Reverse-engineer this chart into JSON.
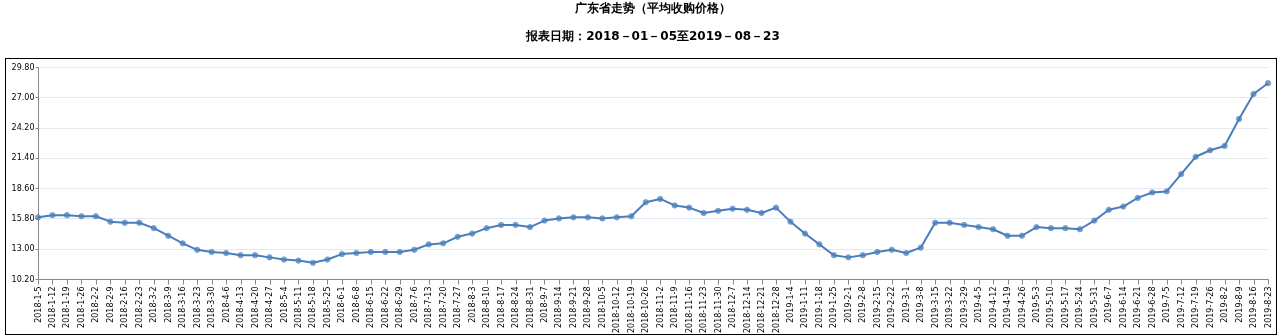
{
  "chart_data": {
    "type": "line",
    "title": "广东省走势（平均收购价格）",
    "subtitle": "报表日期：2018－01－05至2019－08－23",
    "categories": [
      "2018-1-5",
      "2018-1-12",
      "2018-1-19",
      "2018-1-26",
      "2018-2-2",
      "2018-2-9",
      "2018-2-16",
      "2018-2-23",
      "2018-3-2",
      "2018-3-9",
      "2018-3-16",
      "2018-3-23",
      "2018-3-30",
      "2018-4-6",
      "2018-4-13",
      "2018-4-20",
      "2018-4-27",
      "2018-5-4",
      "2018-5-11",
      "2018-5-18",
      "2018-5-25",
      "2018-6-1",
      "2018-6-8",
      "2018-6-15",
      "2018-6-22",
      "2018-6-29",
      "2018-7-6",
      "2018-7-13",
      "2018-7-20",
      "2018-7-27",
      "2018-8-3",
      "2018-8-10",
      "2018-8-17",
      "2018-8-24",
      "2018-8-31",
      "2018-9-7",
      "2018-9-14",
      "2018-9-21",
      "2018-9-28",
      "2018-10-5",
      "2018-10-12",
      "2018-10-19",
      "2018-10-26",
      "2018-11-2",
      "2018-11-9",
      "2018-11-16",
      "2018-11-23",
      "2018-11-30",
      "2018-12-7",
      "2018-12-14",
      "2018-12-21",
      "2018-12-28",
      "2019-1-4",
      "2019-1-11",
      "2019-1-18",
      "2019-1-25",
      "2019-2-1",
      "2019-2-8",
      "2019-2-15",
      "2019-2-22",
      "2019-3-1",
      "2019-3-8",
      "2019-3-15",
      "2019-3-22",
      "2019-3-29",
      "2019-4-5",
      "2019-4-12",
      "2019-4-19",
      "2019-4-26",
      "2019-5-3",
      "2019-5-10",
      "2019-5-17",
      "2019-5-24",
      "2019-5-31",
      "2019-6-7",
      "2019-6-14",
      "2019-6-21",
      "2019-6-28",
      "2019-7-5",
      "2019-7-12",
      "2019-7-19",
      "2019-7-26",
      "2019-8-2",
      "2019-8-9",
      "2019-8-16",
      "2019-8-23"
    ],
    "series": [
      {
        "color": "#4a7ebb",
        "values": [
          15.9,
          16.1,
          16.1,
          16.0,
          16.0,
          15.5,
          15.4,
          15.4,
          14.9,
          14.2,
          13.5,
          12.9,
          12.7,
          12.6,
          12.4,
          12.4,
          12.2,
          12.0,
          11.9,
          11.7,
          12.0,
          12.5,
          12.6,
          12.7,
          12.7,
          12.7,
          12.9,
          13.4,
          13.5,
          14.1,
          14.4,
          14.9,
          15.2,
          15.2,
          15.0,
          15.6,
          15.8,
          15.9,
          15.9,
          15.8,
          15.9,
          16.0,
          17.3,
          17.6,
          17.0,
          16.8,
          16.3,
          16.5,
          16.7,
          16.6,
          16.3,
          16.8,
          15.5,
          14.4,
          13.4,
          12.4,
          12.2,
          12.4,
          12.7,
          12.9,
          12.6,
          13.1,
          15.4,
          15.4,
          15.2,
          15.0,
          14.8,
          14.2,
          14.2,
          15.0,
          14.9,
          14.9,
          14.8,
          15.6,
          16.6,
          16.9,
          17.7,
          18.2,
          18.3,
          19.9,
          21.5,
          22.1,
          22.5,
          25.0,
          27.3,
          28.3
        ]
      }
    ],
    "ylim": [
      10.2,
      29.8
    ],
    "yticks": [
      {
        "value": 10.2,
        "label": "10.20"
      },
      {
        "value": 13.0,
        "label": "13.00"
      },
      {
        "value": 15.8,
        "label": "15.80"
      },
      {
        "value": 18.6,
        "label": "18.60"
      },
      {
        "value": 21.4,
        "label": "21.40"
      },
      {
        "value": 24.2,
        "label": "24.20"
      },
      {
        "value": 27.0,
        "label": "27.00"
      },
      {
        "value": 29.8,
        "label": "29.80"
      }
    ],
    "grid": "y",
    "marker": "circle"
  }
}
